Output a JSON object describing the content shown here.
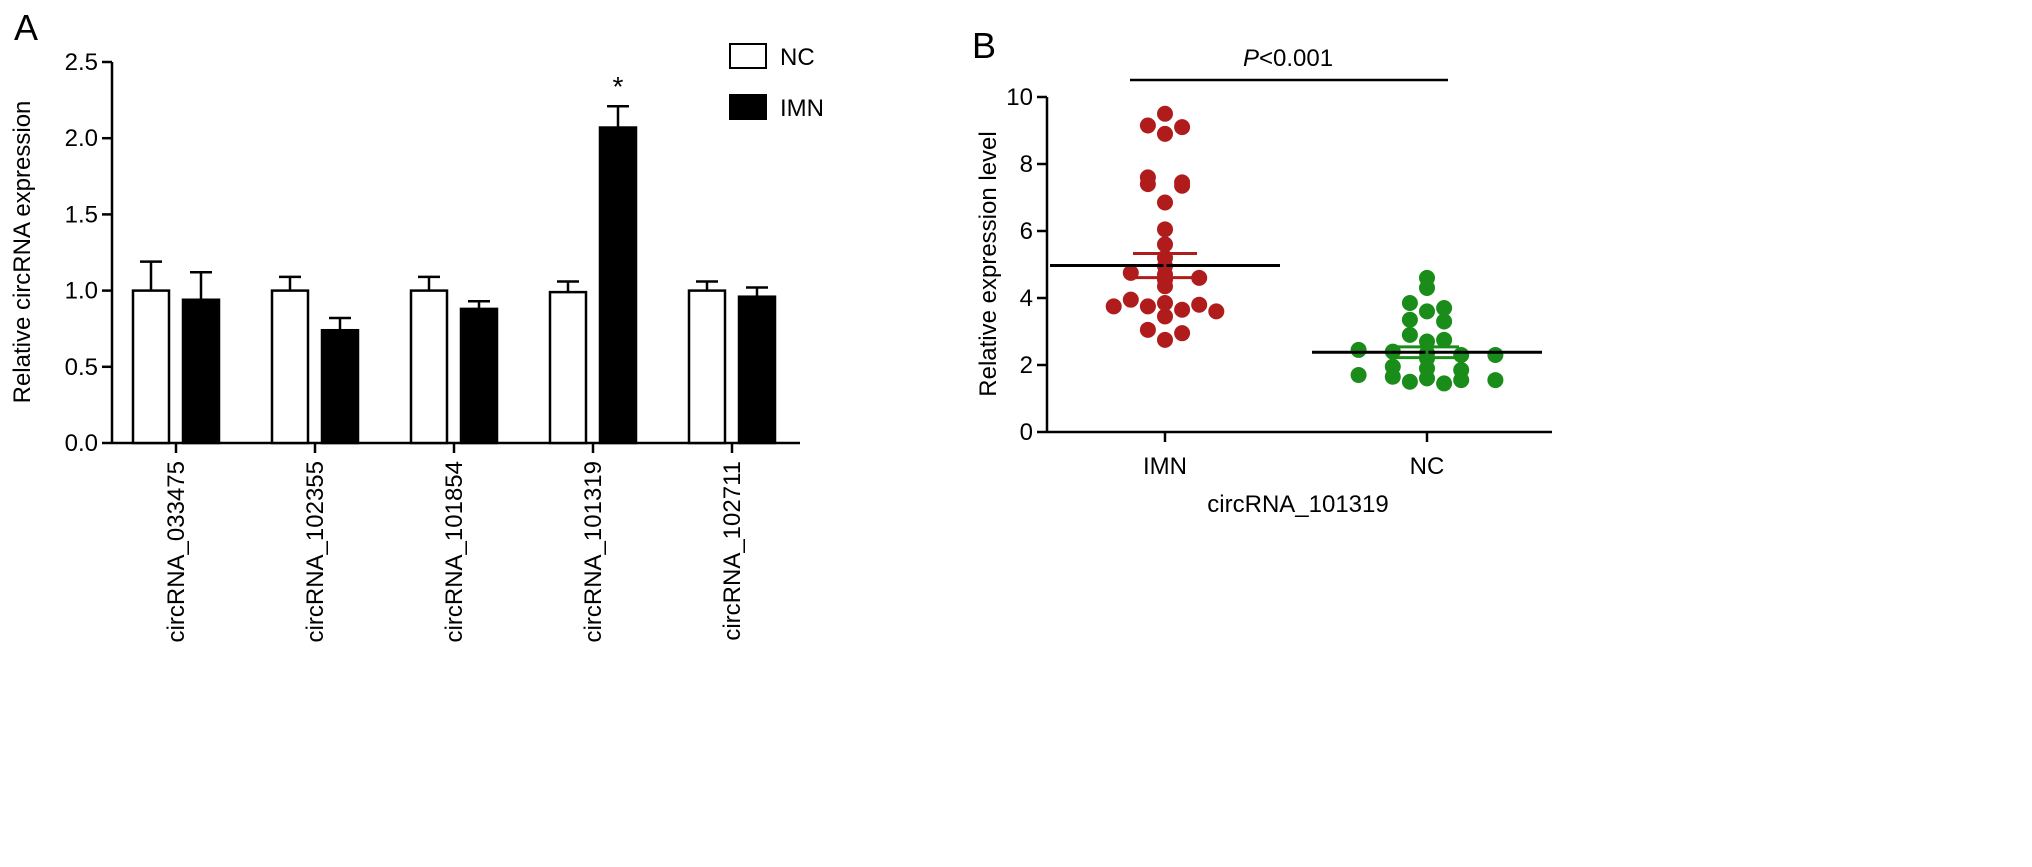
{
  "chart_data": [
    {
      "panel_label": "A",
      "type": "bar",
      "ylabel": "Relative circRNA expression",
      "ylim": [
        0,
        2.5
      ],
      "yticks": [
        "0.0",
        "0.5",
        "1.0",
        "1.5",
        "2.0",
        "2.5"
      ],
      "categories": [
        "circRNA_033475",
        "circRNA_102355",
        "circRNA_101854",
        "circRNA_101319",
        "circRNA_102711"
      ],
      "series": [
        {
          "name": "NC",
          "color": "#ffffff",
          "values": [
            1.0,
            1.0,
            1.0,
            0.99,
            1.0
          ],
          "errors": [
            0.19,
            0.09,
            0.09,
            0.07,
            0.06
          ]
        },
        {
          "name": "IMN",
          "color": "#000000",
          "values": [
            0.94,
            0.74,
            0.88,
            2.07,
            0.96
          ],
          "errors": [
            0.18,
            0.08,
            0.05,
            0.14,
            0.06
          ]
        }
      ],
      "annotations": [
        {
          "category_index": 3,
          "series_index": 1,
          "text": "*"
        }
      ],
      "legend_position": "top-right",
      "grid": false
    },
    {
      "panel_label": "B",
      "type": "scatter",
      "ylabel": "Relative expression level",
      "xlabel": "circRNA_101319",
      "ylim": [
        0,
        10
      ],
      "yticks": [
        "0",
        "2",
        "4",
        "6",
        "8",
        "10"
      ],
      "categories": [
        "IMN",
        "NC"
      ],
      "series": [
        {
          "name": "IMN",
          "color": "#b01c1c",
          "mean": 4.97,
          "sem": 0.36,
          "values": [
            9.5,
            9.1,
            9.15,
            8.9,
            7.6,
            7.4,
            7.35,
            7.45,
            6.85,
            6.05,
            5.6,
            5.2,
            4.95,
            4.75,
            4.7,
            4.6,
            4.55,
            4.35,
            3.95,
            3.85,
            3.8,
            3.75,
            3.75,
            3.65,
            3.6,
            3.45,
            3.05,
            2.95,
            2.75
          ]
        },
        {
          "name": "NC",
          "color": "#1a8c1a",
          "mean": 2.38,
          "sem": 0.16,
          "values": [
            4.6,
            4.3,
            3.85,
            3.7,
            3.6,
            3.35,
            3.3,
            2.9,
            2.75,
            2.7,
            2.45,
            2.4,
            2.35,
            2.3,
            2.3,
            2.2,
            1.95,
            1.9,
            1.85,
            1.7,
            1.65,
            1.6,
            1.55,
            1.55,
            1.5,
            1.45
          ]
        }
      ],
      "annotation": {
        "text_prefix": "P",
        "text_suffix": "<0.001"
      },
      "grid": false
    }
  ]
}
